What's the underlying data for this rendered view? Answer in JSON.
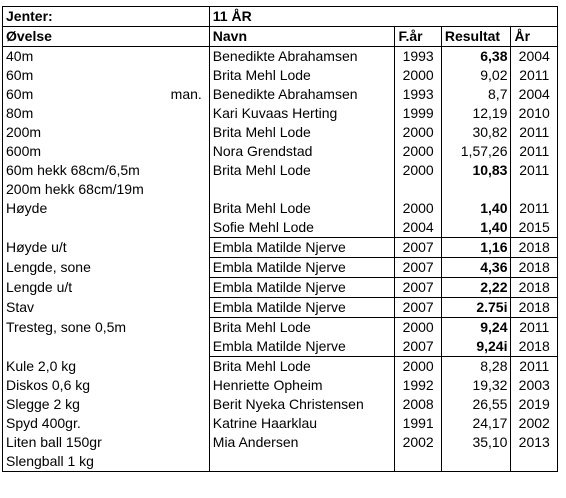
{
  "header": {
    "group": "Jenter:",
    "age": "11 ÅR"
  },
  "columns": {
    "ovelse": "Øvelse",
    "navn": "Navn",
    "far": "F.år",
    "resultat": "Resultat",
    "ar": "År"
  },
  "rows": [
    {
      "ovelse": "40m",
      "note": "",
      "navn": "Benedikte Abrahamsen",
      "far": "1993",
      "resultat": "6,38",
      "bold": true,
      "ar": "2004"
    },
    {
      "ovelse": "60m",
      "note": "",
      "navn": "Brita Mehl Lode",
      "far": "2000",
      "resultat": "9,02",
      "bold": false,
      "ar": "2011"
    },
    {
      "ovelse": "60m",
      "note": "man.",
      "navn": "Benedikte Abrahamsen",
      "far": "1993",
      "resultat": "8,7",
      "bold": false,
      "ar": "2004"
    },
    {
      "ovelse": "80m",
      "note": "",
      "navn": "Kari Kuvaas Herting",
      "far": "1999",
      "resultat": "12,19",
      "bold": false,
      "ar": "2010"
    },
    {
      "ovelse": "200m",
      "note": "",
      "navn": "Brita Mehl Lode",
      "far": "2000",
      "resultat": "30,82",
      "bold": false,
      "ar": "2011"
    },
    {
      "ovelse": "600m",
      "note": "",
      "navn": "Nora Grendstad",
      "far": "2000",
      "resultat": "1,57,26",
      "bold": false,
      "ar": "2011"
    },
    {
      "ovelse": "60m hekk 68cm/6,5m",
      "note": "",
      "navn": "Brita Mehl Lode",
      "far": "2000",
      "resultat": "10,83",
      "bold": true,
      "ar": "2011"
    },
    {
      "ovelse": "200m hekk 68cm/19m",
      "note": "",
      "navn": "",
      "far": "",
      "resultat": "",
      "bold": false,
      "ar": ""
    },
    {
      "ovelse": "Høyde",
      "note": "",
      "navn": "Brita Mehl Lode",
      "far": "2000",
      "resultat": "1,40",
      "bold": true,
      "ar": "2011"
    },
    {
      "ovelse": "",
      "note": "",
      "navn": "Sofie Mehl Lode",
      "far": "2004",
      "resultat": "1,40",
      "bold": true,
      "ar": "2015"
    },
    {
      "ovelse": "Høyde u/t",
      "note": "",
      "navn": "Embla Matilde Njerve",
      "far": "2007",
      "resultat": "1,16",
      "bold": true,
      "ar": "2018"
    },
    {
      "ovelse": "Lengde, sone",
      "note": "",
      "navn": "Embla Matilde Njerve",
      "far": "2007",
      "resultat": "4,36",
      "bold": true,
      "ar": "2018"
    },
    {
      "ovelse": "Lengde u/t",
      "note": "",
      "navn": "Embla Matilde Njerve",
      "far": "2007",
      "resultat": "2,22",
      "bold": true,
      "ar": "2018"
    },
    {
      "ovelse": "Stav",
      "note": "",
      "navn": "Embla Matilde Njerve",
      "far": "2007",
      "resultat": "2.75i",
      "bold": true,
      "ar": "2018"
    },
    {
      "ovelse": "Tresteg, sone 0,5m",
      "note": "",
      "navn": "Brita Mehl Lode",
      "far": "2000",
      "resultat": "9,24",
      "bold": true,
      "ar": "2011"
    },
    {
      "ovelse": "",
      "note": "",
      "navn": "Embla Matilde Njerve",
      "far": "2007",
      "resultat": "9,24i",
      "bold": true,
      "ar": "2018"
    },
    {
      "ovelse": "Kule 2,0 kg",
      "note": "",
      "navn": "Brita Mehl Lode",
      "far": "2000",
      "resultat": "8,28",
      "bold": false,
      "ar": "2011"
    },
    {
      "ovelse": "Diskos 0,6 kg",
      "note": "",
      "navn": "Henriette Opheim",
      "far": "1992",
      "resultat": "19,32",
      "bold": false,
      "ar": "2003"
    },
    {
      "ovelse": "Slegge 2 kg",
      "note": "",
      "navn": "Berit Nyeka Christensen",
      "far": "2008",
      "resultat": "26,55",
      "bold": false,
      "ar": "2019"
    },
    {
      "ovelse": "Spyd 400gr.",
      "note": "",
      "navn": "Katrine Haarklau",
      "far": "1991",
      "resultat": "24,17",
      "bold": false,
      "ar": "2002"
    },
    {
      "ovelse": "Liten ball 150gr",
      "note": "",
      "navn": "Mia Andersen",
      "far": "2002",
      "resultat": "35,10",
      "bold": false,
      "ar": "2013"
    },
    {
      "ovelse": "Slengball 1 kg",
      "note": "",
      "navn": "",
      "far": "",
      "resultat": "",
      "bold": false,
      "ar": ""
    }
  ]
}
